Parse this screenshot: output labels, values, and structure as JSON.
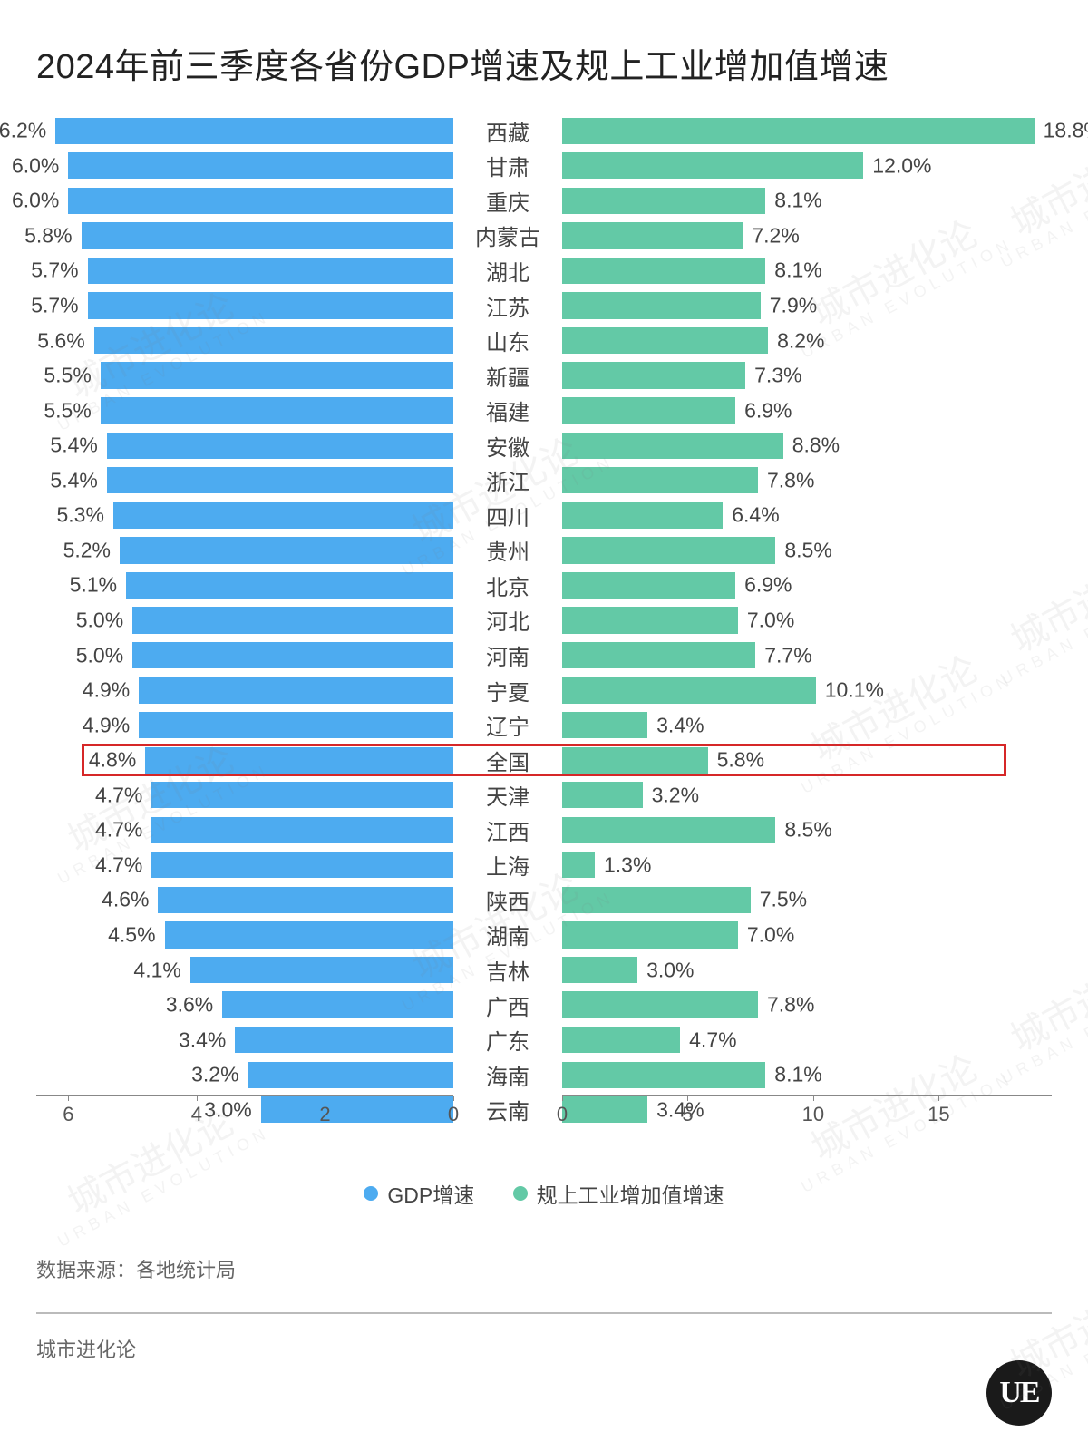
{
  "title": "2024年前三季度各省份GDP增速及规上工业增加值增速",
  "source_label": "数据来源：",
  "source_value": "各地统计局",
  "brand": "城市进化论",
  "logo_text": "UE",
  "watermark_cn": "城市进化论",
  "watermark_en": "URBAN EVOLUTION",
  "legend": {
    "left_label": "GDP增速",
    "right_label": "规上工业增加值增速"
  },
  "chart": {
    "type": "butterfly-bar",
    "left_series_color": "#4dabf0",
    "right_series_color": "#63c9a6",
    "text_color": "#444444",
    "axis_color": "#888888",
    "highlight_color": "#d62728",
    "background_color": "#ffffff",
    "left_axis": {
      "min": 0,
      "max": 6.5,
      "ticks": [
        6,
        4,
        2,
        0
      ]
    },
    "right_axis": {
      "min": 0,
      "max": 19.5,
      "ticks": [
        0,
        5,
        10,
        15
      ]
    },
    "row_height": 38.5,
    "label_fontsize": 23,
    "title_fontsize": 38,
    "highlight_index": 18,
    "rows": [
      {
        "name": "西藏",
        "gdp": 6.2,
        "ind": 18.8
      },
      {
        "name": "甘肃",
        "gdp": 6.0,
        "ind": 12.0
      },
      {
        "name": "重庆",
        "gdp": 6.0,
        "ind": 8.1
      },
      {
        "name": "内蒙古",
        "gdp": 5.8,
        "ind": 7.2
      },
      {
        "name": "湖北",
        "gdp": 5.7,
        "ind": 8.1
      },
      {
        "name": "江苏",
        "gdp": 5.7,
        "ind": 7.9
      },
      {
        "name": "山东",
        "gdp": 5.6,
        "ind": 8.2
      },
      {
        "name": "新疆",
        "gdp": 5.5,
        "ind": 7.3
      },
      {
        "name": "福建",
        "gdp": 5.5,
        "ind": 6.9
      },
      {
        "name": "安徽",
        "gdp": 5.4,
        "ind": 8.8
      },
      {
        "name": "浙江",
        "gdp": 5.4,
        "ind": 7.8
      },
      {
        "name": "四川",
        "gdp": 5.3,
        "ind": 6.4
      },
      {
        "name": "贵州",
        "gdp": 5.2,
        "ind": 8.5
      },
      {
        "name": "北京",
        "gdp": 5.1,
        "ind": 6.9
      },
      {
        "name": "河北",
        "gdp": 5.0,
        "ind": 7.0
      },
      {
        "name": "河南",
        "gdp": 5.0,
        "ind": 7.7
      },
      {
        "name": "宁夏",
        "gdp": 4.9,
        "ind": 10.1
      },
      {
        "name": "辽宁",
        "gdp": 4.9,
        "ind": 3.4
      },
      {
        "name": "全国",
        "gdp": 4.8,
        "ind": 5.8
      },
      {
        "name": "天津",
        "gdp": 4.7,
        "ind": 3.2
      },
      {
        "name": "江西",
        "gdp": 4.7,
        "ind": 8.5
      },
      {
        "name": "上海",
        "gdp": 4.7,
        "ind": 1.3
      },
      {
        "name": "陕西",
        "gdp": 4.6,
        "ind": 7.5
      },
      {
        "name": "湖南",
        "gdp": 4.5,
        "ind": 7.0
      },
      {
        "name": "吉林",
        "gdp": 4.1,
        "ind": 3.0
      },
      {
        "name": "广西",
        "gdp": 3.6,
        "ind": 7.8
      },
      {
        "name": "广东",
        "gdp": 3.4,
        "ind": 4.7
      },
      {
        "name": "海南",
        "gdp": 3.2,
        "ind": 8.1
      },
      {
        "name": "云南",
        "gdp": 3.0,
        "ind": 3.4
      }
    ]
  }
}
